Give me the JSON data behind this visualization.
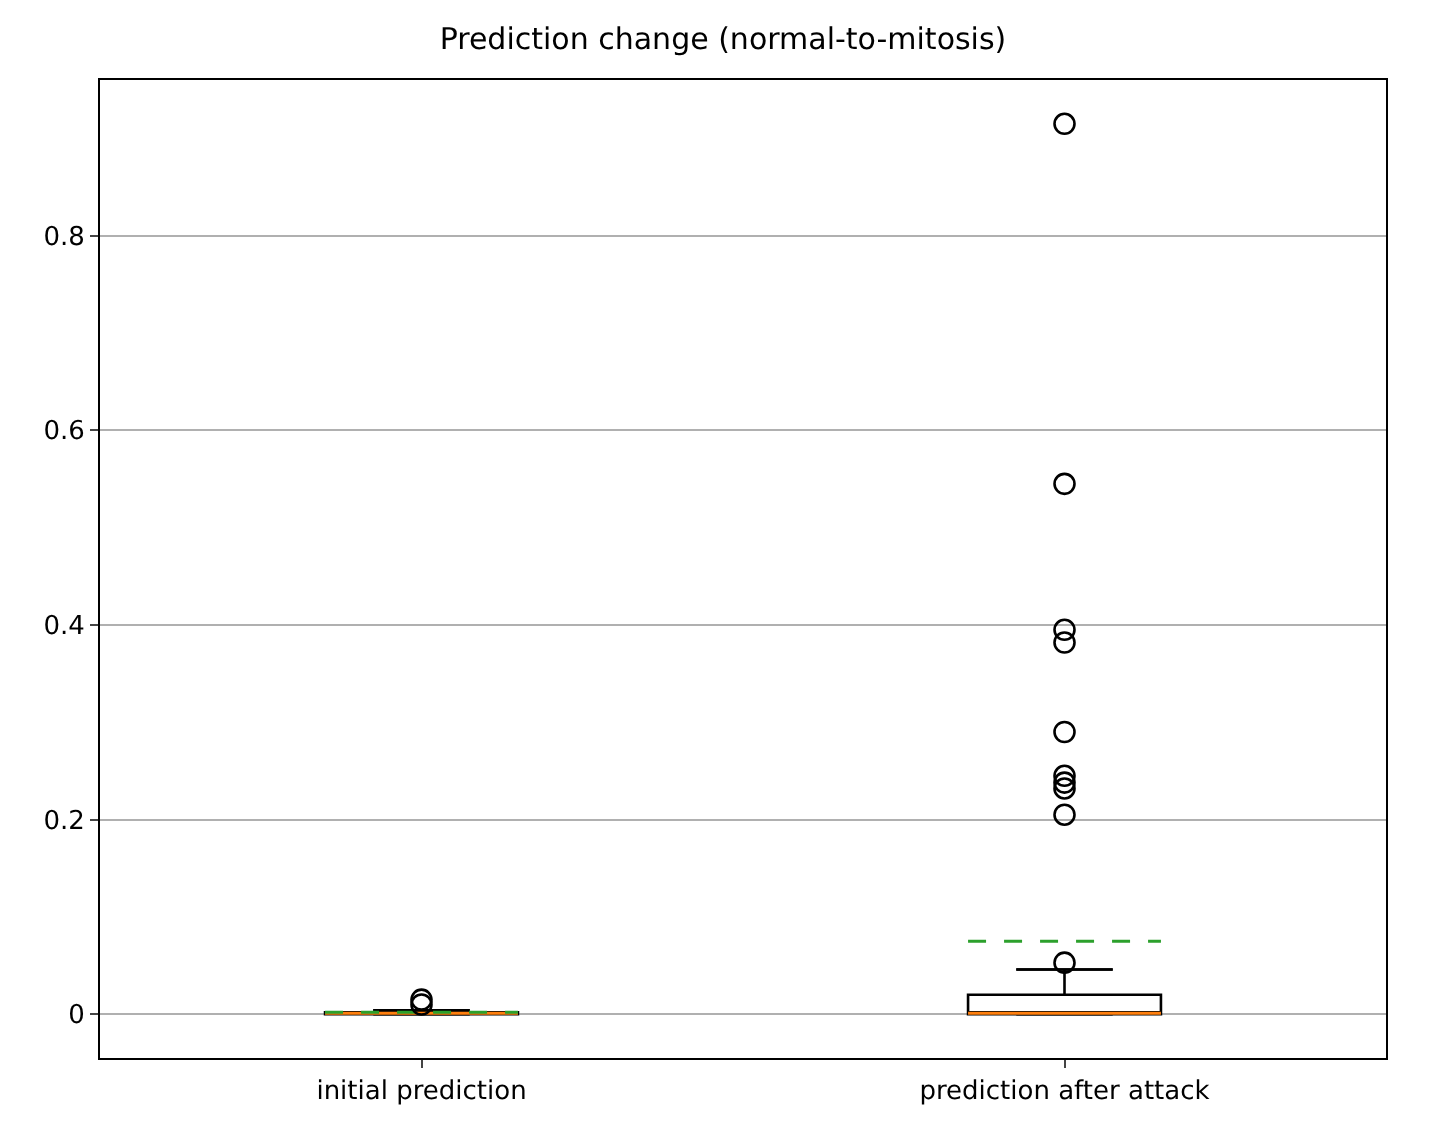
{
  "chart_data": {
    "type": "box",
    "title": "Prediction change (normal-to-mitosis)",
    "categories": [
      "initial prediction",
      "prediction after attack"
    ],
    "boxes": [
      {
        "low": 0,
        "q1": 0,
        "median": 0.001,
        "q3": 0.002,
        "high": 0.004,
        "mean": 0.002,
        "outliers": [
          0.01,
          0.015
        ]
      },
      {
        "low": 0,
        "q1": 0,
        "median": 0.001,
        "q3": 0.02,
        "high": 0.046,
        "mean": 0.075,
        "outliers": [
          0.053,
          0.205,
          0.232,
          0.238,
          0.245,
          0.29,
          0.382,
          0.395,
          0.545,
          0.915
        ]
      }
    ],
    "color": "#000000",
    "ylim": [
      -0.045,
      0.96
    ],
    "yticks": [
      0,
      0.2,
      0.4,
      0.6,
      0.8
    ],
    "grid": "y",
    "marker": "circle"
  }
}
